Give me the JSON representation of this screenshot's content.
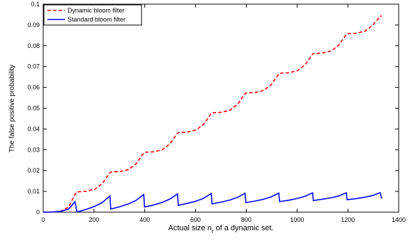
{
  "chart_data": {
    "type": "line",
    "xlabel_parts": [
      "Actual size n",
      "r",
      " of a dynamic set."
    ],
    "ylabel": "The false positive probability",
    "xlim": [
      0,
      1400
    ],
    "ylim": [
      0,
      0.1
    ],
    "xticks": [
      0,
      200,
      400,
      600,
      800,
      1000,
      1200,
      1400
    ],
    "yticks": [
      0,
      0.01,
      0.02,
      0.03,
      0.04,
      0.05,
      0.06,
      0.07,
      0.08,
      0.09,
      0.1
    ],
    "legend": "upper left",
    "x": [
      0,
      35,
      70,
      100,
      125,
      133,
      168,
      203,
      233,
      263,
      266,
      301,
      336,
      366,
      396,
      399,
      434,
      469,
      499,
      529,
      532,
      567,
      602,
      632,
      662,
      665,
      700,
      735,
      765,
      795,
      798,
      833,
      868,
      898,
      928,
      931,
      966,
      1001,
      1031,
      1061,
      1064,
      1099,
      1134,
      1164,
      1194,
      1197,
      1232,
      1267,
      1297,
      1327,
      1333
    ],
    "series": [
      {
        "name": "Dynamic bloom filter",
        "color": "#ff0000",
        "dash": true,
        "values": [
          0,
          0,
          0.0005,
          0.0025,
          0.0085,
          0.0098,
          0.01,
          0.011,
          0.0138,
          0.019,
          0.0193,
          0.0195,
          0.0205,
          0.0233,
          0.0285,
          0.0288,
          0.029,
          0.03,
          0.0328,
          0.038,
          0.0383,
          0.0385,
          0.0395,
          0.0423,
          0.0475,
          0.0478,
          0.048,
          0.049,
          0.0518,
          0.057,
          0.0573,
          0.0575,
          0.0585,
          0.0613,
          0.0665,
          0.0668,
          0.067,
          0.068,
          0.0708,
          0.076,
          0.0763,
          0.0765,
          0.0775,
          0.0803,
          0.0855,
          0.0858,
          0.086,
          0.087,
          0.0898,
          0.094,
          0.0945
        ]
      },
      {
        "name": "Standard bloom filter",
        "color": "#0000ff",
        "dash": false,
        "values": [
          0,
          0.0001,
          0.0004,
          0.0015,
          0.005,
          0.0001,
          0.0013,
          0.0028,
          0.0047,
          0.0078,
          0.0015,
          0.0026,
          0.004,
          0.0057,
          0.0085,
          0.0025,
          0.0034,
          0.0047,
          0.0063,
          0.0088,
          0.0033,
          0.0042,
          0.0053,
          0.0067,
          0.009,
          0.004,
          0.0048,
          0.0058,
          0.0071,
          0.0091,
          0.0046,
          0.0053,
          0.0062,
          0.0074,
          0.0092,
          0.0051,
          0.0057,
          0.0066,
          0.0076,
          0.0093,
          0.0056,
          0.0062,
          0.0069,
          0.0078,
          0.0093,
          0.006,
          0.0065,
          0.0072,
          0.008,
          0.0094,
          0.0065
        ]
      }
    ]
  }
}
